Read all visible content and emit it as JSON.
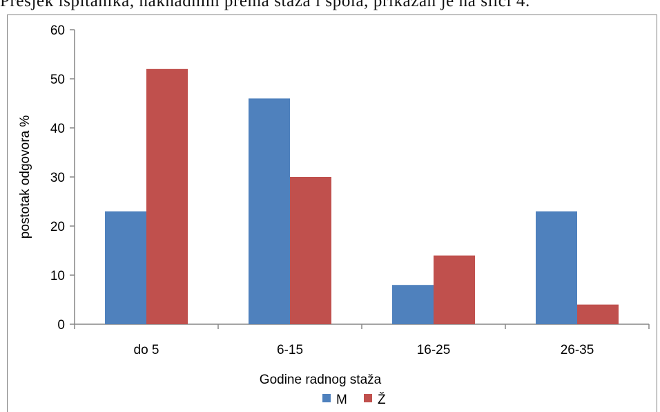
{
  "caption": "Presjek ispitanika, naknadnim prema staža i spola, prikazan je na slici 4.",
  "chart_data": {
    "type": "bar",
    "title": "",
    "xlabel": "Godine radnog staža",
    "ylabel": "postotak odgovora %",
    "categories": [
      "do 5",
      "6-15",
      "16-25",
      "26-35"
    ],
    "series": [
      {
        "name": "M",
        "values": [
          23,
          46,
          8,
          23
        ],
        "color": "#4f81bd"
      },
      {
        "name": "Ž",
        "values": [
          52,
          30,
          14,
          4
        ],
        "color": "#c0504d"
      }
    ],
    "ylim": [
      0,
      60
    ],
    "yticks": [
      0,
      10,
      20,
      30,
      40,
      50,
      60
    ],
    "grid": false,
    "legend": "bottom"
  }
}
